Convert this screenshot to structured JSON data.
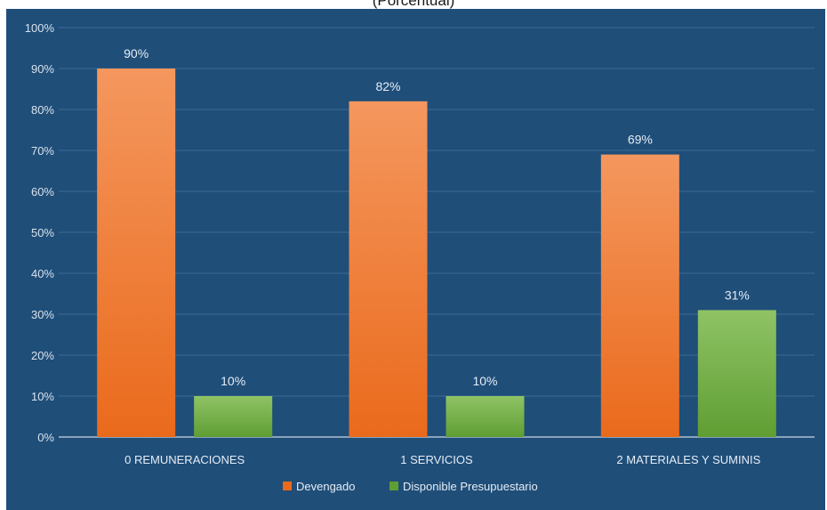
{
  "chart_data": {
    "type": "bar",
    "title": "",
    "subtitle": "(Porcentual)",
    "xlabel": "",
    "ylabel": "",
    "ylim": [
      0,
      100
    ],
    "yticks": [
      "0%",
      "10%",
      "20%",
      "30%",
      "40%",
      "50%",
      "60%",
      "70%",
      "80%",
      "90%",
      "100%"
    ],
    "categories": [
      "0  REMUNERACIONES",
      "1  SERVICIOS",
      "2  MATERIALES Y SUMINIS"
    ],
    "series": [
      {
        "name": "Devengado",
        "values": [
          90,
          82,
          69
        ],
        "labels": [
          "90%",
          "82%",
          "69%"
        ],
        "color_top": "#f4975e",
        "color_bottom": "#ea6a1c"
      },
      {
        "name": "Disponible Presupuestario",
        "values": [
          10,
          10,
          31
        ],
        "labels": [
          "10%",
          "10%",
          "31%"
        ],
        "color_top": "#8fc365",
        "color_bottom": "#5f9e33"
      }
    ],
    "grid": true,
    "legend_position": "bottom",
    "background": "#1f4e79",
    "gridline_color": "#3d6a93"
  }
}
